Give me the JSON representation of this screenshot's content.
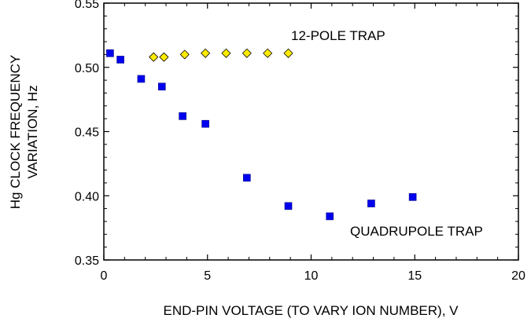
{
  "chart_data": {
    "type": "scatter",
    "title": "",
    "xlabel": "END-PIN VOLTAGE (TO VARY ION NUMBER), V",
    "ylabel_lines": [
      "Hg CLOCK FREQUENCY",
      "VARIATION, Hz"
    ],
    "xlim": [
      0,
      20
    ],
    "ylim": [
      0.35,
      0.55
    ],
    "xticks": [
      0,
      5,
      10,
      15,
      20
    ],
    "yticks": [
      0.35,
      0.4,
      0.45,
      0.5,
      0.55
    ],
    "ytick_labels": [
      "0.35",
      "0.40",
      "0.45",
      "0.50",
      "0.55"
    ],
    "grid": false,
    "series": [
      {
        "name": "12-POLE TRAP",
        "marker": "diamond",
        "color": "#ffeb00",
        "x": [
          2.4,
          2.9,
          3.9,
          4.9,
          5.9,
          6.9,
          7.9,
          8.9
        ],
        "y": [
          0.508,
          0.508,
          0.51,
          0.511,
          0.511,
          0.511,
          0.511,
          0.511
        ]
      },
      {
        "name": "QUADRUPOLE TRAP",
        "marker": "square",
        "color": "#0000ee",
        "x": [
          0.3,
          0.8,
          1.8,
          2.8,
          3.8,
          4.9,
          6.9,
          8.9,
          10.9,
          12.9,
          14.9
        ],
        "y": [
          0.511,
          0.506,
          0.491,
          0.485,
          0.462,
          0.456,
          0.414,
          0.392,
          0.384,
          0.394,
          0.399
        ]
      }
    ]
  }
}
